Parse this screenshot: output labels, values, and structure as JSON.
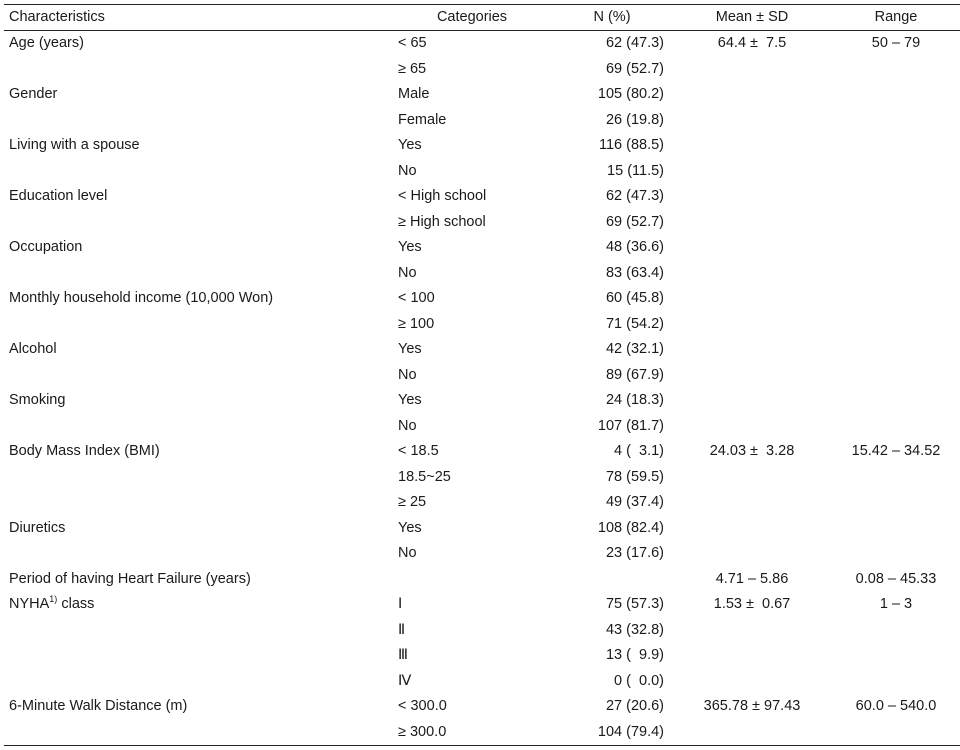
{
  "table": {
    "headers": {
      "characteristics": "Characteristics",
      "categories": "Categories",
      "n_pct": "N (%)",
      "mean_sd": "Mean ± SD",
      "range": "Range"
    },
    "rows": [
      {
        "characteristic": "Age (years)",
        "category": "< 65",
        "n": "62 (47.3)",
        "mean": "64.4 ±  7.5",
        "range": "50 – 79"
      },
      {
        "characteristic": "",
        "category": "≥ 65",
        "n": "69 (52.7)",
        "mean": "",
        "range": ""
      },
      {
        "characteristic": "Gender",
        "category": "Male",
        "n": "105 (80.2)",
        "mean": "",
        "range": ""
      },
      {
        "characteristic": "",
        "category": "Female",
        "n": "26 (19.8)",
        "mean": "",
        "range": ""
      },
      {
        "characteristic": "Living with a spouse",
        "category": "Yes",
        "n": "116 (88.5)",
        "mean": "",
        "range": ""
      },
      {
        "characteristic": "",
        "category": "No",
        "n": "15 (11.5)",
        "mean": "",
        "range": ""
      },
      {
        "characteristic": "Education level",
        "category": "< High school",
        "n": "62 (47.3)",
        "mean": "",
        "range": ""
      },
      {
        "characteristic": "",
        "category": "≥ High school",
        "n": "69 (52.7)",
        "mean": "",
        "range": ""
      },
      {
        "characteristic": "Occupation",
        "category": "Yes",
        "n": "48 (36.6)",
        "mean": "",
        "range": ""
      },
      {
        "characteristic": "",
        "category": "No",
        "n": "83 (63.4)",
        "mean": "",
        "range": ""
      },
      {
        "characteristic": "Monthly household income (10,000 Won)",
        "category": "< 100",
        "n": "60 (45.8)",
        "mean": "",
        "range": ""
      },
      {
        "characteristic": "",
        "category": "≥ 100",
        "n": "71 (54.2)",
        "mean": "",
        "range": ""
      },
      {
        "characteristic": "Alcohol",
        "category": "Yes",
        "n": "42 (32.1)",
        "mean": "",
        "range": ""
      },
      {
        "characteristic": "",
        "category": "No",
        "n": "89 (67.9)",
        "mean": "",
        "range": ""
      },
      {
        "characteristic": "Smoking",
        "category": "Yes",
        "n": "24 (18.3)",
        "mean": "",
        "range": ""
      },
      {
        "characteristic": "",
        "category": "No",
        "n": "107 (81.7)",
        "mean": "",
        "range": ""
      },
      {
        "characteristic": "Body Mass Index (BMI)",
        "category": "< 18.5",
        "n": "4 (  3.1)",
        "mean": "24.03 ±  3.28",
        "range": "15.42 – 34.52"
      },
      {
        "characteristic": "",
        "category": "18.5~25",
        "n": "78 (59.5)",
        "mean": "",
        "range": ""
      },
      {
        "characteristic": "",
        "category": "≥ 25",
        "n": "49 (37.4)",
        "mean": "",
        "range": ""
      },
      {
        "characteristic": "Diuretics",
        "category": "Yes",
        "n": "108 (82.4)",
        "mean": "",
        "range": ""
      },
      {
        "characteristic": "",
        "category": "No",
        "n": "23 (17.6)",
        "mean": "",
        "range": ""
      },
      {
        "characteristic": "Period of having Heart Failure (years)",
        "category": "",
        "n": "",
        "mean": "4.71 – 5.86",
        "range": "0.08 – 45.33"
      },
      {
        "characteristic": "NYHA",
        "sup": "1)",
        "characteristic_suffix": " class",
        "category": "Ⅰ",
        "n": "75 (57.3)",
        "mean": "1.53 ±  0.67",
        "range": "1 – 3"
      },
      {
        "characteristic": "",
        "category": "Ⅱ",
        "n": "43 (32.8)",
        "mean": "",
        "range": ""
      },
      {
        "characteristic": "",
        "category": "Ⅲ",
        "n": "13 (  9.9)",
        "mean": "",
        "range": ""
      },
      {
        "characteristic": "",
        "category": "Ⅳ",
        "n": "0 (  0.0)",
        "mean": "",
        "range": ""
      },
      {
        "characteristic": "6-Minute Walk Distance (m)",
        "category": "< 300.0",
        "n": "27 (20.6)",
        "mean": "365.78 ± 97.43",
        "range": "60.0 – 540.0"
      },
      {
        "characteristic": "",
        "category": "≥ 300.0",
        "n": "104 (79.4)",
        "mean": "",
        "range": ""
      }
    ]
  }
}
